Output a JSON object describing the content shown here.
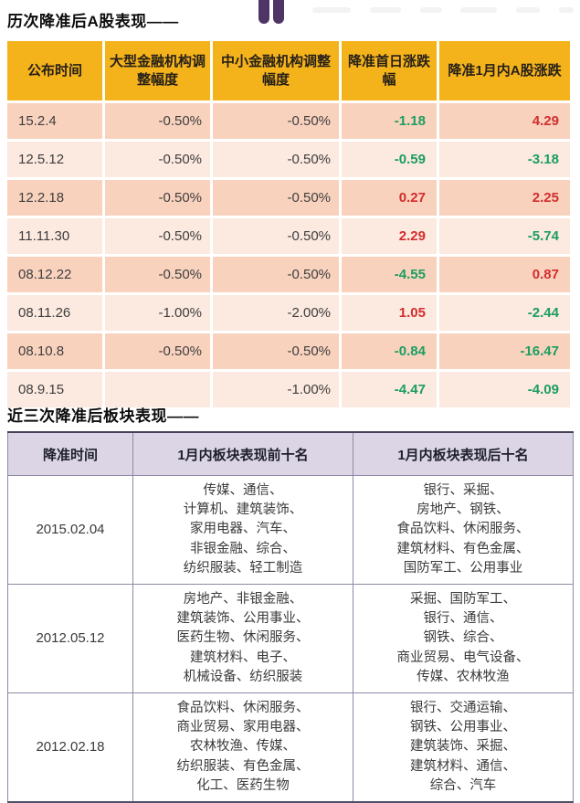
{
  "titles": {
    "section1": "历次降准后A股表现——",
    "section2": "近三次降准后板块表现——"
  },
  "icons": {
    "quote_icon": "double-quote-bars"
  },
  "colors": {
    "header_yellow": "#F5B31B",
    "row_dark": "#F9D2BE",
    "row_light": "#FCE9DF",
    "up_red": "#D22E2E",
    "down_green": "#1B9E60",
    "header_lavender": "#DBD5E6",
    "quote_purple": "#4F3566"
  },
  "table1": {
    "headers": [
      "公布时间",
      "大型金融机构调整幅度",
      "中小金融机构调整幅度",
      "降准首日涨跌幅",
      "降准1月内A股涨跌"
    ],
    "rows": [
      {
        "date": "15.2.4",
        "large_adj": "-0.50%",
        "small_adj": "-0.50%",
        "first_day": "-1.18",
        "first_day_color": "green",
        "month": "4.29",
        "month_color": "red"
      },
      {
        "date": "12.5.12",
        "large_adj": "-0.50%",
        "small_adj": "-0.50%",
        "first_day": "-0.59",
        "first_day_color": "green",
        "month": "-3.18",
        "month_color": "green"
      },
      {
        "date": "12.2.18",
        "large_adj": "-0.50%",
        "small_adj": "-0.50%",
        "first_day": "0.27",
        "first_day_color": "red",
        "month": "2.25",
        "month_color": "red"
      },
      {
        "date": "11.11.30",
        "large_adj": "-0.50%",
        "small_adj": "-0.50%",
        "first_day": "2.29",
        "first_day_color": "red",
        "month": "-5.74",
        "month_color": "green"
      },
      {
        "date": "08.12.22",
        "large_adj": "-0.50%",
        "small_adj": "-0.50%",
        "first_day": "-4.55",
        "first_day_color": "green",
        "month": "0.87",
        "month_color": "red"
      },
      {
        "date": "08.11.26",
        "large_adj": "-1.00%",
        "small_adj": "-2.00%",
        "first_day": "1.05",
        "first_day_color": "red",
        "month": "-2.44",
        "month_color": "green"
      },
      {
        "date": "08.10.8",
        "large_adj": "-0.50%",
        "small_adj": "-0.50%",
        "first_day": "-0.84",
        "first_day_color": "green",
        "month": "-16.47",
        "month_color": "green"
      },
      {
        "date": "08.9.15",
        "large_adj": "",
        "small_adj": "-1.00%",
        "first_day": "-4.47",
        "first_day_color": "green",
        "month": "-4.09",
        "month_color": "green"
      }
    ]
  },
  "table2": {
    "headers": [
      "降准时间",
      "1月内板块表现前十名",
      "1月内板块表现后十名"
    ],
    "rows": [
      {
        "date": "2015.02.04",
        "top10_lines": [
          "传媒、通信、",
          "计算机、建筑装饰、",
          "家用电器、汽车、",
          "非银金融、综合、",
          "纺织服装、轻工制造"
        ],
        "bottom10_lines": [
          "银行、采掘、",
          "房地产、钢铁、",
          "食品饮料、休闲服务、",
          "建筑材料、有色金属、",
          "国防军工、公用事业"
        ]
      },
      {
        "date": "2012.05.12",
        "top10_lines": [
          "房地产、非银金融、",
          "建筑装饰、公用事业、",
          "医药生物、休闲服务、",
          "建筑材料、电子、",
          "机械设备、纺织服装"
        ],
        "bottom10_lines": [
          "采掘、国防军工、",
          "银行、通信、",
          "钢铁、综合、",
          "商业贸易、电气设备、",
          "传媒、农林牧渔"
        ]
      },
      {
        "date": "2012.02.18",
        "top10_lines": [
          "食品饮料、休闲服务、",
          "商业贸易、家用电器、",
          "农林牧渔、传媒、",
          "纺织服装、有色金属、",
          "化工、医药生物"
        ],
        "bottom10_lines": [
          "银行、交通运输、",
          "钢铁、公用事业、",
          "建筑装饰、采掘、",
          "建筑材料、通信、",
          "综合、汽车"
        ]
      }
    ]
  }
}
